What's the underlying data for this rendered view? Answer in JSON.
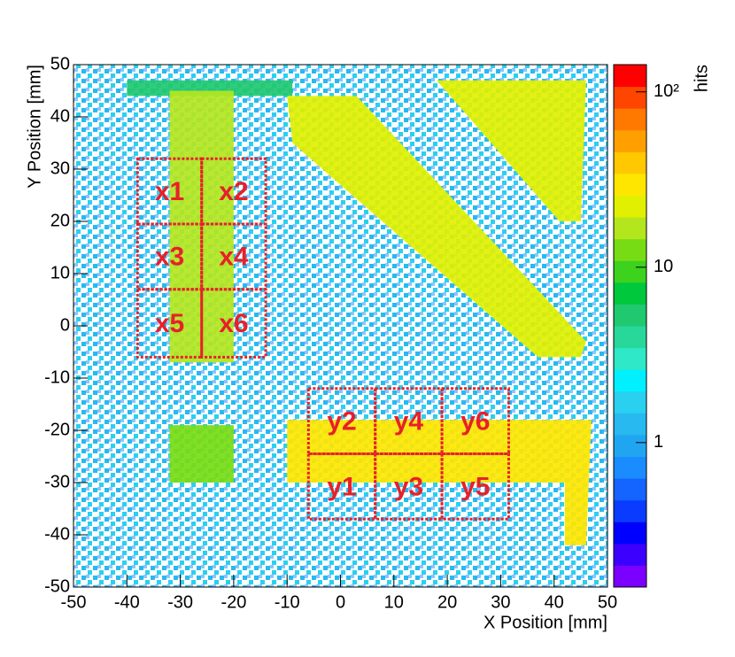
{
  "chart_data": {
    "type": "heatmap",
    "x_label": "X Position [mm]",
    "y_label": "Y Position [mm]",
    "z_label": "hits",
    "xlim": [
      -50,
      50
    ],
    "ylim": [
      -50,
      50
    ],
    "xticks": [
      -50,
      -40,
      -30,
      -20,
      -10,
      0,
      10,
      20,
      30,
      40,
      50
    ],
    "yticks": [
      -50,
      -40,
      -30,
      -20,
      -10,
      0,
      10,
      20,
      30,
      40,
      50
    ],
    "zlim": [
      0.15,
      143
    ],
    "zscale": "log",
    "zticks": [
      1,
      10,
      {
        "value": 100,
        "label": "10²"
      }
    ],
    "palette": [
      "#7b00ff",
      "#3c00ff",
      "#0000ff",
      "#0a3cff",
      "#1464ff",
      "#1a8cff",
      "#20a6f0",
      "#27b9f0",
      "#2ad0f0",
      "#00f0ff",
      "#2ee8c8",
      "#28d89a",
      "#20c870",
      "#00c83c",
      "#3cd21e",
      "#78dc14",
      "#b4e61e",
      "#e1f000",
      "#ffe600",
      "#ffc800",
      "#ffa000",
      "#ff7800",
      "#ff4600",
      "#ff0000"
    ],
    "regions": [
      {
        "value": 1,
        "points": [
          [
            -50,
            -50
          ],
          [
            50,
            -50
          ],
          [
            50,
            50
          ],
          [
            -50,
            50
          ]
        ]
      },
      {
        "value": 5,
        "points": [
          [
            -40,
            44
          ],
          [
            -9,
            44
          ],
          [
            -9,
            47
          ],
          [
            -40,
            47
          ]
        ]
      },
      {
        "value": 15,
        "points": [
          [
            -32,
            -7
          ],
          [
            -20,
            -7
          ],
          [
            -20,
            45
          ],
          [
            -32,
            45
          ]
        ]
      },
      {
        "value": 24,
        "points": [
          [
            -10,
            44
          ],
          [
            3,
            44
          ],
          [
            46,
            -3
          ],
          [
            45,
            -6
          ],
          [
            37,
            -6
          ],
          [
            -9,
            35
          ]
        ]
      },
      {
        "value": 24,
        "points": [
          [
            18,
            47
          ],
          [
            46,
            47
          ],
          [
            45,
            20
          ],
          [
            41,
            20
          ]
        ]
      },
      {
        "value": 12,
        "points": [
          [
            -32,
            -30
          ],
          [
            -20,
            -30
          ],
          [
            -20,
            -19
          ],
          [
            -32,
            -19
          ]
        ]
      },
      {
        "value": 30,
        "points": [
          [
            -10,
            -30
          ],
          [
            42,
            -30
          ],
          [
            42,
            -42
          ],
          [
            46,
            -42
          ],
          [
            47,
            -18
          ],
          [
            -10,
            -18
          ]
        ]
      }
    ],
    "annotations": [
      {
        "label": "x1",
        "x": [
          -38,
          -26
        ],
        "y": [
          19.5,
          32
        ]
      },
      {
        "label": "x2",
        "x": [
          -26,
          -14
        ],
        "y": [
          19.5,
          32
        ]
      },
      {
        "label": "x3",
        "x": [
          -38,
          -26
        ],
        "y": [
          7,
          19.5
        ]
      },
      {
        "label": "x4",
        "x": [
          -26,
          -14
        ],
        "y": [
          7,
          19.5
        ]
      },
      {
        "label": "x5",
        "x": [
          -38,
          -26
        ],
        "y": [
          -6,
          7
        ]
      },
      {
        "label": "x6",
        "x": [
          -26,
          -14
        ],
        "y": [
          -6,
          7
        ]
      },
      {
        "label": "y2",
        "x": [
          -6,
          6.5
        ],
        "y": [
          -24.5,
          -12
        ]
      },
      {
        "label": "y4",
        "x": [
          6.5,
          19
        ],
        "y": [
          -24.5,
          -12
        ]
      },
      {
        "label": "y6",
        "x": [
          19,
          31.5
        ],
        "y": [
          -24.5,
          -12
        ]
      },
      {
        "label": "y1",
        "x": [
          -6,
          6.5
        ],
        "y": [
          -37,
          -24.5
        ]
      },
      {
        "label": "y3",
        "x": [
          6.5,
          19
        ],
        "y": [
          -37,
          -24.5
        ]
      },
      {
        "label": "y5",
        "x": [
          19,
          31.5
        ],
        "y": [
          -37,
          -24.5
        ]
      }
    ]
  }
}
